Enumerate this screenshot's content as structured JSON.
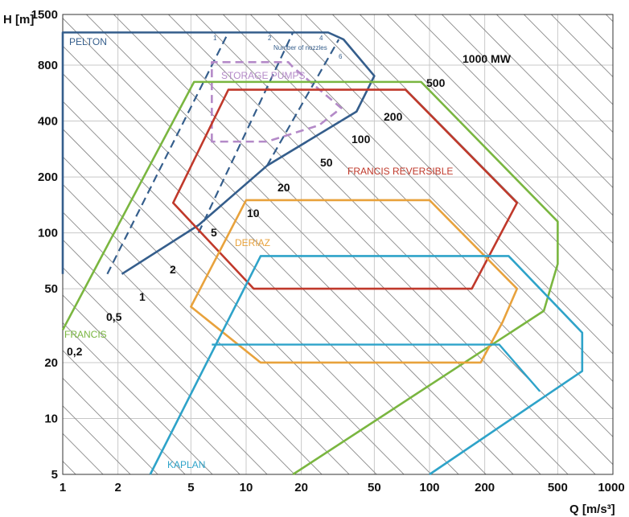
{
  "chart_data": {
    "type": "line",
    "title": "",
    "xlabel": "Q [m/s³]",
    "ylabel": "H [m]",
    "xscale": "log",
    "yscale": "log",
    "xlim": [
      1,
      1000
    ],
    "ylim": [
      5,
      1500
    ],
    "grid": true,
    "x_ticks": [
      1,
      2,
      5,
      10,
      20,
      50,
      100,
      200,
      500,
      1000
    ],
    "x_tick_labels": [
      "1",
      "2",
      "5",
      "10",
      "20",
      "50",
      "100",
      "200",
      "500",
      "1000"
    ],
    "y_ticks": [
      5,
      10,
      20,
      50,
      100,
      200,
      400,
      800,
      1500
    ],
    "y_tick_labels": [
      "5",
      "10",
      "20",
      "50",
      "100",
      "200",
      "400",
      "800",
      "1500"
    ],
    "power_lines": [
      {
        "label": "0,2",
        "value_mw": 0.2
      },
      {
        "label": "0,5",
        "value_mw": 0.5
      },
      {
        "label": "1",
        "value_mw": 1
      },
      {
        "label": "2",
        "value_mw": 2
      },
      {
        "label": "5",
        "value_mw": 5
      },
      {
        "label": "10",
        "value_mw": 10
      },
      {
        "label": "20",
        "value_mw": 20
      },
      {
        "label": "50",
        "value_mw": 50
      },
      {
        "label": "100",
        "value_mw": 100
      },
      {
        "label": "200",
        "value_mw": 200
      },
      {
        "label": "500",
        "value_mw": 500
      },
      {
        "label": "1000 MW",
        "value_mw": 1000
      }
    ],
    "regions": [
      {
        "name": "PELTON",
        "color": "#355e8c",
        "points": [
          [
            1,
            60
          ],
          [
            1,
            1200
          ],
          [
            28,
            1200
          ],
          [
            34,
            1100
          ],
          [
            50,
            700
          ],
          [
            40,
            450
          ],
          [
            13,
            230
          ],
          [
            5.5,
            110
          ],
          [
            2.1,
            60
          ]
        ],
        "close": false,
        "nozzle_lines": [
          {
            "label": "1",
            "points": [
              [
                1.75,
                60
              ],
              [
                8,
                1200
              ]
            ]
          },
          {
            "label": "2",
            "points": [
              [
                5.5,
                100
              ],
              [
                18,
                1200
              ]
            ]
          },
          {
            "label": "4",
            "points": [
              [
                13,
                230
              ],
              [
                32,
                1100
              ]
            ]
          },
          {
            "label": "6",
            "points": [
              [
                13,
                230
              ],
              [
                40,
                450
              ],
              [
                50,
                700
              ]
            ]
          }
        ],
        "nozzle_caption": "Number of nozzles"
      },
      {
        "name": "STORAGE PUMPS",
        "color": "#b48ac8",
        "points": [
          [
            6.5,
            310
          ],
          [
            6.5,
            830
          ],
          [
            17,
            830
          ],
          [
            18,
            780
          ],
          [
            33,
            470
          ],
          [
            25,
            380
          ],
          [
            13,
            310
          ]
        ],
        "close": true
      },
      {
        "name": "FRANCIS",
        "color": "#7ab640",
        "points": [
          [
            1,
            30
          ],
          [
            5.2,
            650
          ],
          [
            90,
            650
          ],
          [
            500,
            115
          ],
          [
            500,
            68
          ],
          [
            420,
            38
          ],
          [
            18,
            5
          ]
        ],
        "close": false
      },
      {
        "name": "FRANCIS REVERSIBLE",
        "color": "#c0392b",
        "points": [
          [
            8,
            590
          ],
          [
            74,
            590
          ],
          [
            300,
            145
          ],
          [
            170,
            50
          ],
          [
            11,
            50
          ],
          [
            4,
            145
          ]
        ],
        "close": true
      },
      {
        "name": "DERIAZ",
        "color": "#e8a23c",
        "points": [
          [
            10,
            150
          ],
          [
            100,
            150
          ],
          [
            300,
            50
          ],
          [
            250,
            33
          ],
          [
            190,
            20
          ],
          [
            12,
            20
          ],
          [
            5,
            40
          ]
        ],
        "close": true
      },
      {
        "name": "KAPLAN",
        "color": "#2ea3c9",
        "points": [
          [
            3,
            5
          ],
          [
            12,
            75
          ],
          [
            270,
            75
          ],
          [
            680,
            29
          ],
          [
            680,
            18
          ],
          [
            100,
            5
          ]
        ],
        "close": false,
        "extra_lines": [
          {
            "points": [
              [
                6.5,
                25
              ],
              [
                240,
                25
              ],
              [
                400,
                14
              ]
            ]
          }
        ]
      }
    ]
  }
}
